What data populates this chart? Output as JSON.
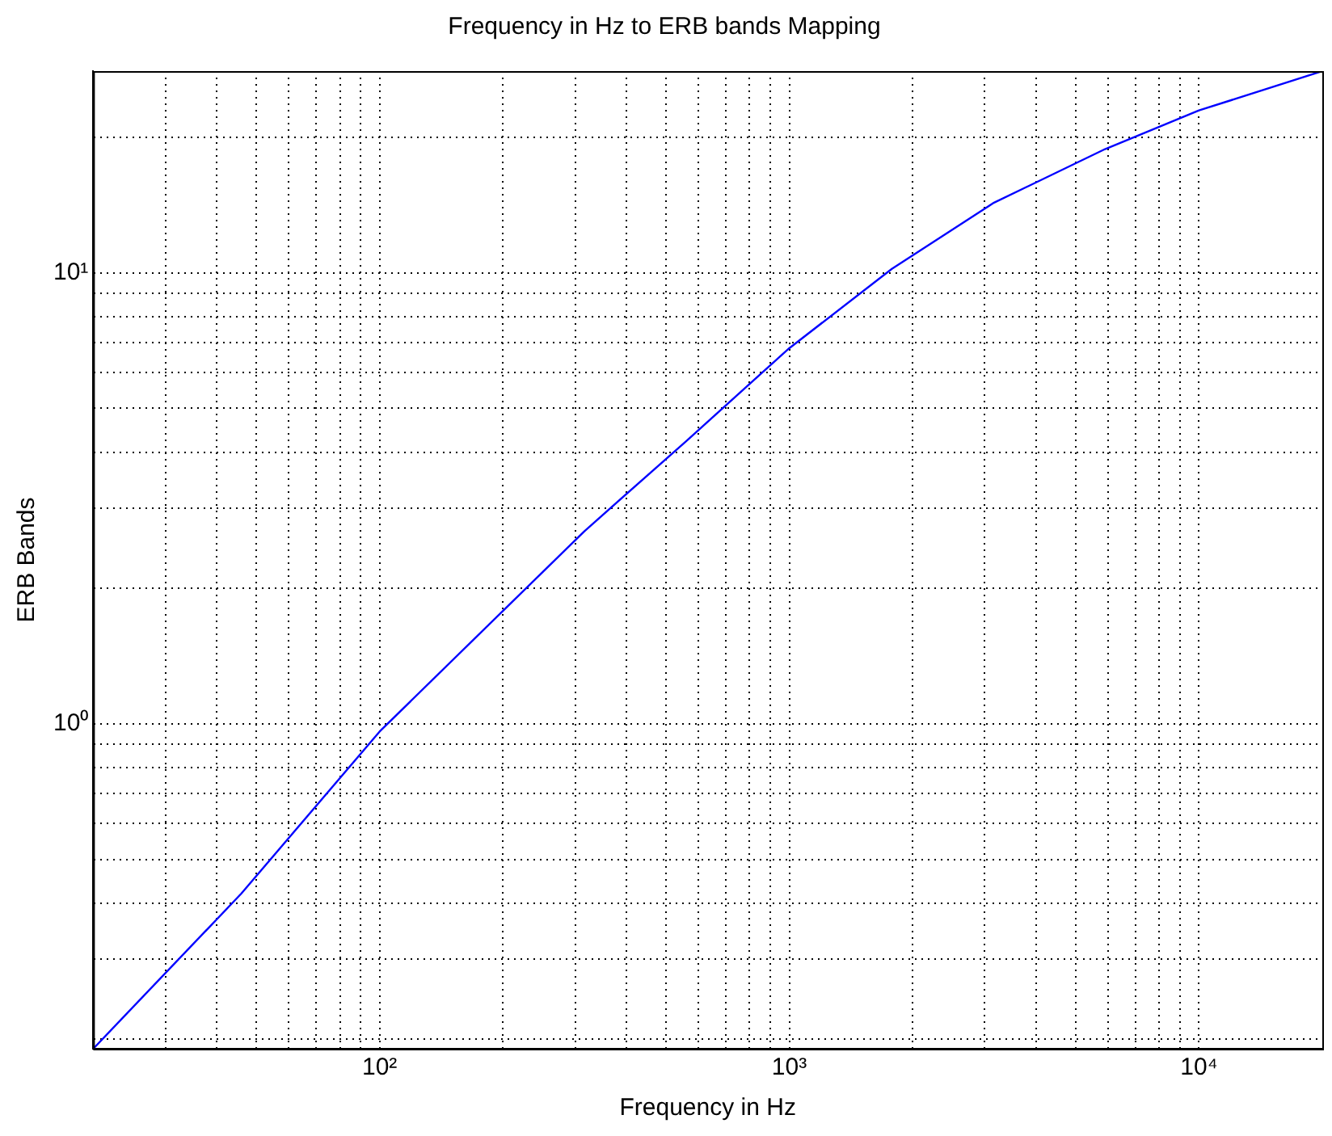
{
  "chart_data": {
    "type": "line",
    "title": "Frequency in Hz to ERB bands Mapping",
    "xlabel": "Frequency in Hz",
    "ylabel": "ERB Bands",
    "log": "xy",
    "grid": true,
    "xlim": [
      20,
      20000
    ],
    "ylim": [
      0.19,
      28
    ],
    "xticks": [
      {
        "value": 20,
        "label": null
      },
      {
        "value": 30,
        "label": null
      },
      {
        "value": 40,
        "label": null
      },
      {
        "value": 50,
        "label": null
      },
      {
        "value": 60,
        "label": null
      },
      {
        "value": 70,
        "label": null
      },
      {
        "value": 80,
        "label": null
      },
      {
        "value": 90,
        "label": null
      },
      {
        "value": 100,
        "label": "10²"
      },
      {
        "value": 200,
        "label": null
      },
      {
        "value": 300,
        "label": null
      },
      {
        "value": 400,
        "label": null
      },
      {
        "value": 500,
        "label": null
      },
      {
        "value": 600,
        "label": null
      },
      {
        "value": 700,
        "label": null
      },
      {
        "value": 800,
        "label": null
      },
      {
        "value": 900,
        "label": null
      },
      {
        "value": 1000,
        "label": "10³"
      },
      {
        "value": 2000,
        "label": null
      },
      {
        "value": 3000,
        "label": null
      },
      {
        "value": 4000,
        "label": null
      },
      {
        "value": 5000,
        "label": null
      },
      {
        "value": 6000,
        "label": null
      },
      {
        "value": 7000,
        "label": null
      },
      {
        "value": 8000,
        "label": null
      },
      {
        "value": 9000,
        "label": null
      },
      {
        "value": 10000,
        "label": "10⁴"
      }
    ],
    "yticks": [
      {
        "value": 0.2,
        "label": null
      },
      {
        "value": 0.3,
        "label": null
      },
      {
        "value": 0.4,
        "label": null
      },
      {
        "value": 0.5,
        "label": null
      },
      {
        "value": 0.6,
        "label": null
      },
      {
        "value": 0.7,
        "label": null
      },
      {
        "value": 0.8,
        "label": null
      },
      {
        "value": 0.9,
        "label": null
      },
      {
        "value": 1,
        "label": "10⁰"
      },
      {
        "value": 2,
        "label": null
      },
      {
        "value": 3,
        "label": null
      },
      {
        "value": 4,
        "label": null
      },
      {
        "value": 5,
        "label": null
      },
      {
        "value": 6,
        "label": null
      },
      {
        "value": 7,
        "label": null
      },
      {
        "value": 8,
        "label": null
      },
      {
        "value": 9,
        "label": null
      },
      {
        "value": 10,
        "label": "10¹"
      },
      {
        "value": 20,
        "label": null
      }
    ],
    "series": [
      {
        "color": "#0000ff",
        "x": [
          20,
          46,
          100,
          316,
          560,
          1000,
          1780,
          3160,
          5900,
          10000,
          20000
        ],
        "values": [
          0.19,
          0.42,
          0.96,
          2.67,
          4.23,
          6.8,
          10.2,
          14.3,
          18.8,
          22.9,
          28
        ]
      }
    ]
  }
}
